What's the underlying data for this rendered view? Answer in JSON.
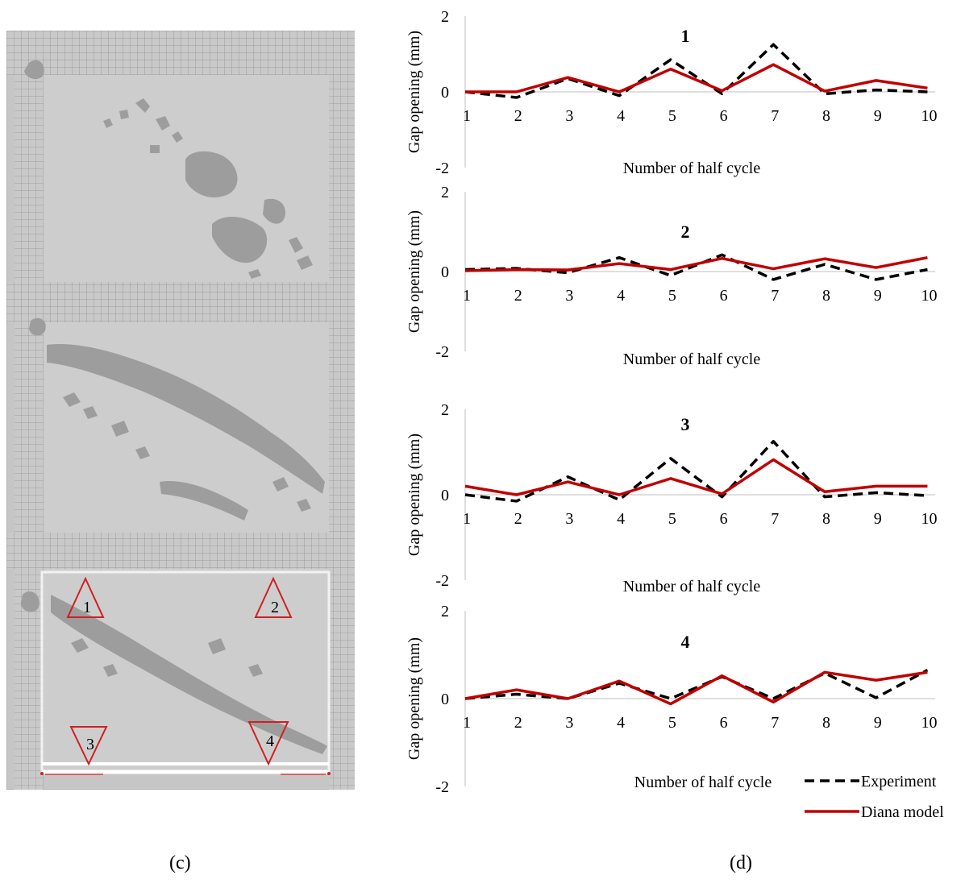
{
  "captions": {
    "left": "(c)",
    "right": "(d)"
  },
  "fem": {
    "markers": [
      {
        "label": "1",
        "orientation": "up"
      },
      {
        "label": "2",
        "orientation": "up"
      },
      {
        "label": "3",
        "orientation": "down"
      },
      {
        "label": "4",
        "orientation": "down"
      }
    ],
    "colors": {
      "background": "#c8c8c8",
      "crack": "#9c9c9c",
      "mesh": "#8a8a8a",
      "marker": "#d02020"
    }
  },
  "legend": {
    "experiment": "Experiment",
    "model": "Diana model"
  },
  "colors": {
    "experiment": "#000000",
    "model": "#c00000",
    "axis": "#bfbfbf"
  },
  "chart_data": [
    {
      "type": "line",
      "title": "1",
      "xlabel": "Number of half cycle",
      "ylabel": "Gap opening (mm)",
      "ylim": [
        -2,
        2
      ],
      "yticks": [
        "2",
        "0",
        "-2"
      ],
      "categories": [
        "1",
        "2",
        "3",
        "4",
        "5",
        "6",
        "7",
        "8",
        "9",
        "10"
      ],
      "series": [
        {
          "name": "Experiment",
          "style": "dashed",
          "values": [
            0,
            -0.15,
            0.35,
            -0.1,
            0.85,
            -0.05,
            1.25,
            -0.05,
            0.05,
            0
          ]
        },
        {
          "name": "Diana model",
          "style": "solid",
          "values": [
            0,
            0,
            0.38,
            0,
            0.6,
            0.03,
            0.72,
            0.02,
            0.3,
            0.1
          ]
        }
      ]
    },
    {
      "type": "line",
      "title": "2",
      "xlabel": "Number of half cycle",
      "ylabel": "Gap opening (mm)",
      "ylim": [
        -2,
        2
      ],
      "yticks": [
        "2",
        "0",
        "-2"
      ],
      "categories": [
        "1",
        "2",
        "3",
        "4",
        "5",
        "6",
        "7",
        "8",
        "9",
        "10"
      ],
      "series": [
        {
          "name": "Experiment",
          "style": "dashed",
          "values": [
            0.05,
            0.08,
            -0.03,
            0.35,
            -0.1,
            0.42,
            -0.2,
            0.18,
            -0.2,
            0.05
          ]
        },
        {
          "name": "Diana model",
          "style": "solid",
          "values": [
            0.02,
            0.05,
            0.04,
            0.2,
            0.05,
            0.33,
            0.07,
            0.32,
            0.1,
            0.35
          ]
        }
      ]
    },
    {
      "type": "line",
      "title": "3",
      "xlabel": "Number of half cycle",
      "ylabel": "Gap opening (mm)",
      "ylim": [
        -2,
        2
      ],
      "yticks": [
        "2",
        "0",
        "-2"
      ],
      "categories": [
        "1",
        "2",
        "3",
        "4",
        "5",
        "6",
        "7",
        "8",
        "9",
        "10"
      ],
      "series": [
        {
          "name": "Experiment",
          "style": "dashed",
          "values": [
            0,
            -0.15,
            0.42,
            -0.12,
            0.85,
            -0.05,
            1.25,
            -0.05,
            0.05,
            -0.02
          ]
        },
        {
          "name": "Diana model",
          "style": "solid",
          "values": [
            0.2,
            0,
            0.3,
            0,
            0.38,
            0.02,
            0.82,
            0.07,
            0.2,
            0.2
          ]
        }
      ]
    },
    {
      "type": "line",
      "title": "4",
      "xlabel": "Number of half cycle",
      "ylabel": "Gap opening (mm)",
      "ylim": [
        -2,
        2
      ],
      "yticks": [
        "2",
        "0",
        "-2"
      ],
      "categories": [
        "1",
        "2",
        "3",
        "4",
        "5",
        "6",
        "7",
        "8",
        "9",
        "10"
      ],
      "series": [
        {
          "name": "Experiment",
          "style": "dashed",
          "values": [
            0,
            0.1,
            0,
            0.35,
            0,
            0.5,
            0,
            0.58,
            0.02,
            0.65
          ]
        },
        {
          "name": "Diana model",
          "style": "solid",
          "values": [
            0,
            0.2,
            0,
            0.4,
            -0.12,
            0.52,
            -0.08,
            0.6,
            0.42,
            0.6
          ]
        }
      ]
    }
  ]
}
